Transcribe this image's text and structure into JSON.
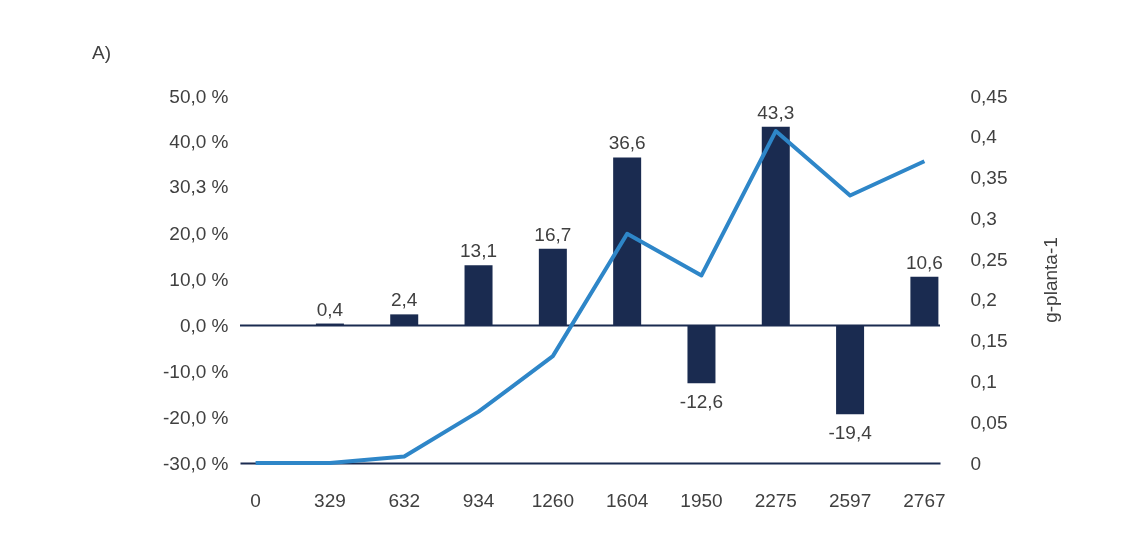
{
  "chart_data": {
    "type": "bar",
    "title": "A)",
    "y2label": "g-planta-1",
    "categories": [
      "0",
      "329",
      "632",
      "934",
      "1260",
      "1604",
      "1950",
      "2275",
      "2597",
      "2767"
    ],
    "series": [
      {
        "color": "#1a2b50",
        "values": [
          null,
          0.4,
          2.4,
          13.1,
          16.7,
          36.6,
          -12.6,
          43.3,
          -19.4,
          10.6
        ],
        "value_labels": [
          null,
          "0,4",
          "2,4",
          "13,1",
          "16,7",
          "36,6",
          "-12,6",
          "43,3",
          "-19,4",
          "10,6"
        ]
      },
      {
        "type": "line",
        "axis": "y2",
        "color": "#2e86c8",
        "values": [
          0,
          0,
          0.008,
          0.063,
          0.131,
          0.281,
          0.23,
          0.407,
          0.328,
          0.37
        ]
      }
    ],
    "ylim": [
      -30,
      50
    ],
    "yticks": [
      {
        "value": 50,
        "label": "50,0 %"
      },
      {
        "value": 40,
        "label": "40,0 %"
      },
      {
        "value": 30.3,
        "label": "30,3 %"
      },
      {
        "value": 20,
        "label": "20,0 %"
      },
      {
        "value": 10,
        "label": "10,0 %"
      },
      {
        "value": 0,
        "label": "0,0 %"
      },
      {
        "value": -10,
        "label": "-10,0 %"
      },
      {
        "value": -20,
        "label": "-20,0 %"
      },
      {
        "value": -30,
        "label": "-30,0 %"
      }
    ],
    "y2lim": [
      0,
      0.45
    ],
    "y2ticks": [
      0,
      {
        "value": 0.05,
        "label": "0,05"
      },
      {
        "value": 0.1,
        "label": "0,1"
      },
      {
        "value": 0.15,
        "label": "0,15"
      },
      {
        "value": 0.2,
        "label": "0,2"
      },
      {
        "value": 0.25,
        "label": "0,25"
      },
      {
        "value": 0.3,
        "label": "0,3"
      },
      {
        "value": 0.35,
        "label": "0,35"
      },
      {
        "value": 0.4,
        "label": "0,4"
      },
      {
        "value": 0.45,
        "label": "0,45"
      }
    ],
    "ref_lines": [
      {
        "axis": "y",
        "value": 0,
        "color": "#1a2b50"
      }
    ],
    "grid": false
  }
}
